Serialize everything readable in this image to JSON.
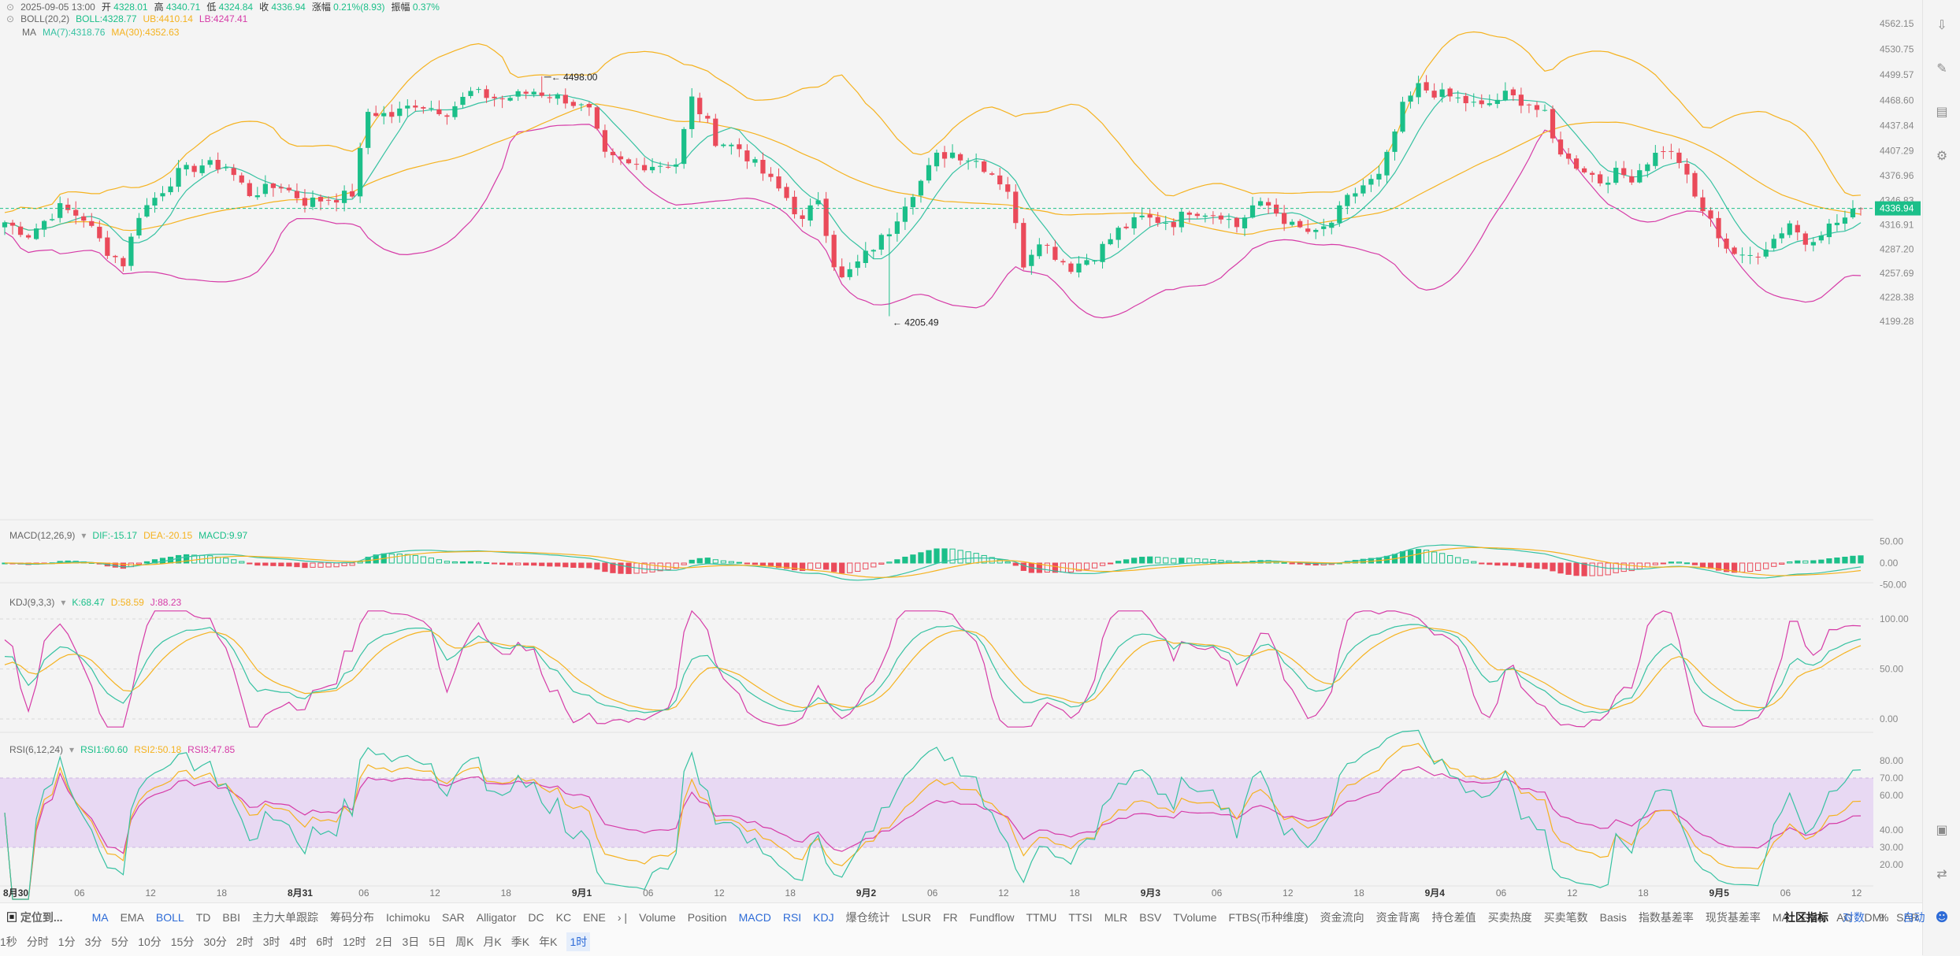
{
  "header": {
    "date": "2025-09-05 13:00",
    "open_label": "开",
    "open": "4328.01",
    "high_label": "高",
    "high": "4340.71",
    "low_label": "低",
    "low": "4324.84",
    "close_label": "收",
    "close": "4336.94",
    "change_label": "涨幅",
    "change": "0.21%(8.93)",
    "amp_label": "振幅",
    "amp": "0.37%"
  },
  "boll_legend": {
    "name": "BOLL(20,2)",
    "boll": "BOLL:4328.77",
    "ub": "UB:4410.14",
    "lb": "LB:4247.41"
  },
  "ma_legend": {
    "name": "MA",
    "ma7": "MA(7):4318.76",
    "ma30": "MA(30):4352.63"
  },
  "macd_legend": {
    "name": "MACD(12,26,9)",
    "dif": "DIF:-15.17",
    "dea": "DEA:-20.15",
    "macd": "MACD:9.97"
  },
  "kdj_legend": {
    "name": "KDJ(9,3,3)",
    "k": "K:68.47",
    "d": "D:58.59",
    "j": "J:88.23"
  },
  "rsi_legend": {
    "name": "RSI(6,12,24)",
    "rsi1": "RSI1:60.60",
    "rsi2": "RSI2:50.18",
    "rsi3": "RSI3:47.85"
  },
  "colors": {
    "up": "#1bbf89",
    "down": "#ea4a5a",
    "boll_outer": "#f5b21f",
    "boll_lower": "#d63ba7",
    "ma7": "#36c2a2",
    "ma30": "#f5b21f",
    "rsi_band": "#e8d9f3",
    "accent": "#2d6bd7"
  },
  "chart_data": {
    "type": "candlestick",
    "title": "",
    "interval": "1时",
    "y_ticks": [
      "4562.15",
      "4530.75",
      "4499.57",
      "4468.60",
      "4437.84",
      "4407.29",
      "4376.96",
      "4346.83",
      "4316.91",
      "4287.20",
      "4257.69",
      "4228.38",
      "4199.28"
    ],
    "ylim": [
      4185,
      4575
    ],
    "x_tick_labels": [
      "8月30",
      "06",
      "12",
      "18",
      "8月31",
      "06",
      "12",
      "18",
      "9月1",
      "06",
      "12",
      "18",
      "9月2",
      "06",
      "12",
      "18",
      "9月3",
      "06",
      "12",
      "18",
      "9月4",
      "06",
      "12",
      "18",
      "9月5",
      "06",
      "12"
    ],
    "current_price": "4336.94",
    "annotations": [
      {
        "label": "4498.00",
        "type": "max"
      },
      {
        "label": "4205.49",
        "type": "min"
      }
    ],
    "anchors": [
      {
        "i": 0,
        "p": 4320
      },
      {
        "i": 3,
        "p": 4305
      },
      {
        "i": 7,
        "p": 4338
      },
      {
        "i": 10,
        "p": 4325
      },
      {
        "i": 13,
        "p": 4285
      },
      {
        "i": 15,
        "p": 4270
      },
      {
        "i": 17,
        "p": 4330
      },
      {
        "i": 19,
        "p": 4350
      },
      {
        "i": 22,
        "p": 4380
      },
      {
        "i": 25,
        "p": 4390
      },
      {
        "i": 28,
        "p": 4388
      },
      {
        "i": 31,
        "p": 4355
      },
      {
        "i": 35,
        "p": 4365
      },
      {
        "i": 38,
        "p": 4345
      },
      {
        "i": 42,
        "p": 4350
      },
      {
        "i": 44,
        "p": 4355
      },
      {
        "i": 46,
        "p": 4455
      },
      {
        "i": 49,
        "p": 4450
      },
      {
        "i": 52,
        "p": 4465
      },
      {
        "i": 56,
        "p": 4455
      },
      {
        "i": 59,
        "p": 4478
      },
      {
        "i": 63,
        "p": 4470
      },
      {
        "i": 67,
        "p": 4480
      },
      {
        "i": 71,
        "p": 4470
      },
      {
        "i": 74,
        "p": 4455
      },
      {
        "i": 76,
        "p": 4400
      },
      {
        "i": 79,
        "p": 4390
      },
      {
        "i": 82,
        "p": 4390
      },
      {
        "i": 85,
        "p": 4392
      },
      {
        "i": 87,
        "p": 4470
      },
      {
        "i": 89,
        "p": 4440
      },
      {
        "i": 90,
        "p": 4420
      },
      {
        "i": 93,
        "p": 4410
      },
      {
        "i": 96,
        "p": 4380
      },
      {
        "i": 99,
        "p": 4350
      },
      {
        "i": 101,
        "p": 4320
      },
      {
        "i": 103,
        "p": 4350
      },
      {
        "i": 105,
        "p": 4270
      },
      {
        "i": 106,
        "p": 4250
      },
      {
        "i": 108,
        "p": 4270
      },
      {
        "i": 110,
        "p": 4290
      },
      {
        "i": 112,
        "p": 4310
      },
      {
        "i": 114,
        "p": 4345
      },
      {
        "i": 116,
        "p": 4370
      },
      {
        "i": 118,
        "p": 4400
      },
      {
        "i": 120,
        "p": 4405
      },
      {
        "i": 123,
        "p": 4395
      },
      {
        "i": 125,
        "p": 4380
      },
      {
        "i": 127,
        "p": 4360
      },
      {
        "i": 129,
        "p": 4270
      },
      {
        "i": 131,
        "p": 4300
      },
      {
        "i": 133,
        "p": 4280
      },
      {
        "i": 135,
        "p": 4265
      },
      {
        "i": 138,
        "p": 4280
      },
      {
        "i": 141,
        "p": 4310
      },
      {
        "i": 144,
        "p": 4325
      },
      {
        "i": 148,
        "p": 4320
      },
      {
        "i": 150,
        "p": 4335
      },
      {
        "i": 154,
        "p": 4330
      },
      {
        "i": 156,
        "p": 4315
      },
      {
        "i": 158,
        "p": 4340
      },
      {
        "i": 160,
        "p": 4340
      },
      {
        "i": 163,
        "p": 4315
      },
      {
        "i": 166,
        "p": 4305
      },
      {
        "i": 168,
        "p": 4320
      },
      {
        "i": 170,
        "p": 4348
      },
      {
        "i": 172,
        "p": 4365
      },
      {
        "i": 174,
        "p": 4375
      },
      {
        "i": 175,
        "p": 4400
      },
      {
        "i": 177,
        "p": 4460
      },
      {
        "i": 179,
        "p": 4485
      },
      {
        "i": 181,
        "p": 4478
      },
      {
        "i": 184,
        "p": 4470
      },
      {
        "i": 187,
        "p": 4460
      },
      {
        "i": 190,
        "p": 4475
      },
      {
        "i": 193,
        "p": 4465
      },
      {
        "i": 195,
        "p": 4450
      },
      {
        "i": 196,
        "p": 4420
      },
      {
        "i": 198,
        "p": 4395
      },
      {
        "i": 200,
        "p": 4385
      },
      {
        "i": 202,
        "p": 4370
      },
      {
        "i": 204,
        "p": 4380
      },
      {
        "i": 206,
        "p": 4375
      },
      {
        "i": 208,
        "p": 4395
      },
      {
        "i": 210,
        "p": 4410
      },
      {
        "i": 212,
        "p": 4395
      },
      {
        "i": 214,
        "p": 4350
      },
      {
        "i": 216,
        "p": 4320
      },
      {
        "i": 218,
        "p": 4290
      },
      {
        "i": 220,
        "p": 4275
      },
      {
        "i": 222,
        "p": 4283
      },
      {
        "i": 224,
        "p": 4300
      },
      {
        "i": 226,
        "p": 4320
      },
      {
        "i": 228,
        "p": 4295
      },
      {
        "i": 230,
        "p": 4310
      },
      {
        "i": 233,
        "p": 4325
      },
      {
        "i": 235,
        "p": 4337
      }
    ],
    "macd_ticks": [
      "50.00",
      "0.00",
      "-50.00"
    ],
    "kdj_ticks": [
      "100.00",
      "50.00",
      "0.00"
    ],
    "rsi_ticks": [
      "80.00",
      "70.00",
      "60.00",
      "40.00",
      "30.00",
      "20.00"
    ]
  },
  "bottom_indicators": {
    "locate": "定位到...",
    "main": [
      "MA",
      "EMA",
      "BOLL",
      "TD",
      "BBI",
      "主力大单跟踪",
      "筹码分布",
      "Ichimoku",
      "SAR",
      "Alligator",
      "DC",
      "KC",
      "ENE"
    ],
    "sub": [
      "Volume",
      "Position",
      "MACD",
      "RSI",
      "KDJ",
      "爆仓统计",
      "LSUR",
      "FR",
      "Fundflow",
      "TTMU",
      "TTSI",
      "MLR",
      "BSV",
      "TVolume",
      "FTBS(币种维度)",
      "资金流向",
      "资金背离",
      "持仓差值",
      "买卖热度",
      "买卖笔数",
      "Basis",
      "指数基差率",
      "现货基差率",
      "MA",
      "EMA",
      "AO",
      "DMI",
      "SAR"
    ],
    "right": [
      "社区指标",
      "对数",
      "%",
      "自动"
    ]
  },
  "timeframes": [
    "1秒",
    "分时",
    "1分",
    "3分",
    "5分",
    "10分",
    "15分",
    "30分",
    "2时",
    "3时",
    "4时",
    "6时",
    "12时",
    "2日",
    "3日",
    "5日",
    "周K",
    "月K",
    "季K",
    "年K",
    "1时"
  ],
  "right_icons": [
    "download-icon",
    "drawing-icon",
    "indicator-icon",
    "settings-icon",
    "layout-icon",
    "compare-icon",
    "bot-icon"
  ]
}
